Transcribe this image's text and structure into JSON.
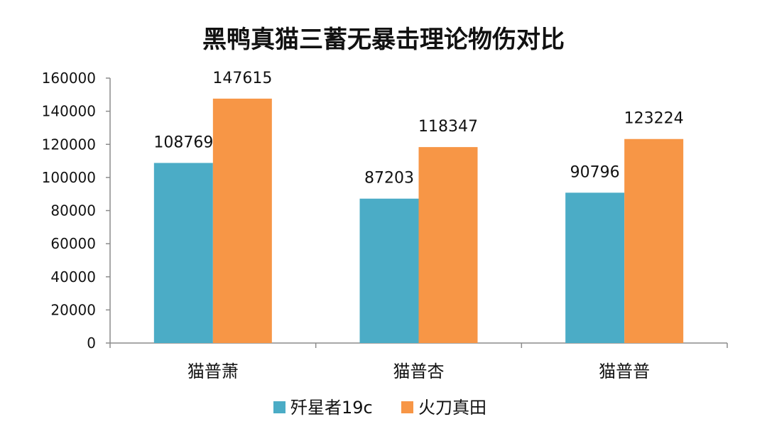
{
  "chart_data": {
    "type": "bar",
    "title": "黑鸭真猫三蓄无暴击理论物伤对比",
    "categories": [
      "猫普萧",
      "猫普杏",
      "猫普普"
    ],
    "series": [
      {
        "name": "歼星者19c",
        "color": "#4BACC6",
        "values": [
          108769,
          87203,
          90796
        ]
      },
      {
        "name": "火刀真田",
        "color": "#F79646",
        "values": [
          147615,
          118347,
          123224
        ]
      }
    ],
    "ylim": [
      0,
      160000
    ],
    "yticks": [
      0,
      20000,
      40000,
      60000,
      80000,
      100000,
      120000,
      140000,
      160000
    ],
    "xlabel": "",
    "ylabel": "",
    "grid": false,
    "legend_position": "bottom"
  }
}
